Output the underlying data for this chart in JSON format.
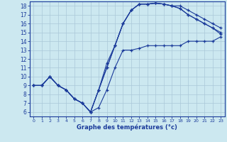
{
  "xlabel": "Graphe des températures (°c)",
  "bg_color": "#cce8f0",
  "grid_color": "#aac8d8",
  "line_color": "#1a3a9a",
  "xlim": [
    -0.5,
    23.5
  ],
  "ylim": [
    5.5,
    18.5
  ],
  "xticks": [
    0,
    1,
    2,
    3,
    4,
    5,
    6,
    7,
    8,
    9,
    10,
    11,
    12,
    13,
    14,
    15,
    16,
    17,
    18,
    19,
    20,
    21,
    22,
    23
  ],
  "yticks": [
    6,
    7,
    8,
    9,
    10,
    11,
    12,
    13,
    14,
    15,
    16,
    17,
    18
  ],
  "line1_x": [
    0,
    1,
    2,
    3,
    4,
    5,
    6,
    7,
    8,
    9,
    10,
    11,
    12,
    13,
    14,
    15,
    16,
    17,
    18,
    19,
    20,
    21,
    22,
    23
  ],
  "line1_y": [
    9,
    9,
    10,
    9,
    8.5,
    7.5,
    7,
    6,
    6.5,
    8.5,
    11,
    13,
    13,
    13.2,
    13.5,
    13.5,
    13.5,
    13.5,
    13.5,
    14,
    14,
    14,
    14,
    14.5
  ],
  "line2_x": [
    0,
    1,
    2,
    3,
    4,
    5,
    6,
    7,
    8,
    9,
    10,
    11,
    12,
    13,
    14,
    15,
    16,
    17,
    18,
    19,
    20,
    21,
    22,
    23
  ],
  "line2_y": [
    9,
    9,
    10,
    9,
    8.5,
    7.5,
    7,
    6,
    8.5,
    11,
    13.5,
    16,
    17.5,
    18.2,
    18.2,
    18.3,
    18.2,
    18,
    18,
    17.5,
    17,
    16.5,
    16,
    15.5
  ],
  "line3_x": [
    0,
    1,
    2,
    3,
    4,
    5,
    6,
    7,
    8,
    9,
    10,
    11,
    12,
    13,
    14,
    15,
    16,
    17,
    18,
    19,
    20,
    21,
    22,
    23
  ],
  "line3_y": [
    9,
    9,
    10,
    9,
    8.5,
    7.5,
    7,
    6,
    8.5,
    11,
    13.5,
    16,
    17.5,
    18.2,
    18.2,
    18.3,
    18.2,
    18,
    17.7,
    17,
    16.5,
    16,
    15.5,
    15
  ],
  "line4_x": [
    0,
    1,
    2,
    3,
    4,
    5,
    6,
    7,
    8,
    9,
    10,
    11,
    12,
    13,
    14,
    15,
    16,
    17,
    18,
    19,
    20,
    21,
    22,
    23
  ],
  "line4_y": [
    9,
    9,
    10,
    9,
    8.5,
    7.5,
    7,
    6,
    8.5,
    11.5,
    13.5,
    16,
    17.5,
    18.2,
    18.2,
    18.3,
    18.2,
    18,
    17.7,
    17,
    16.5,
    16,
    15.5,
    14.8
  ]
}
